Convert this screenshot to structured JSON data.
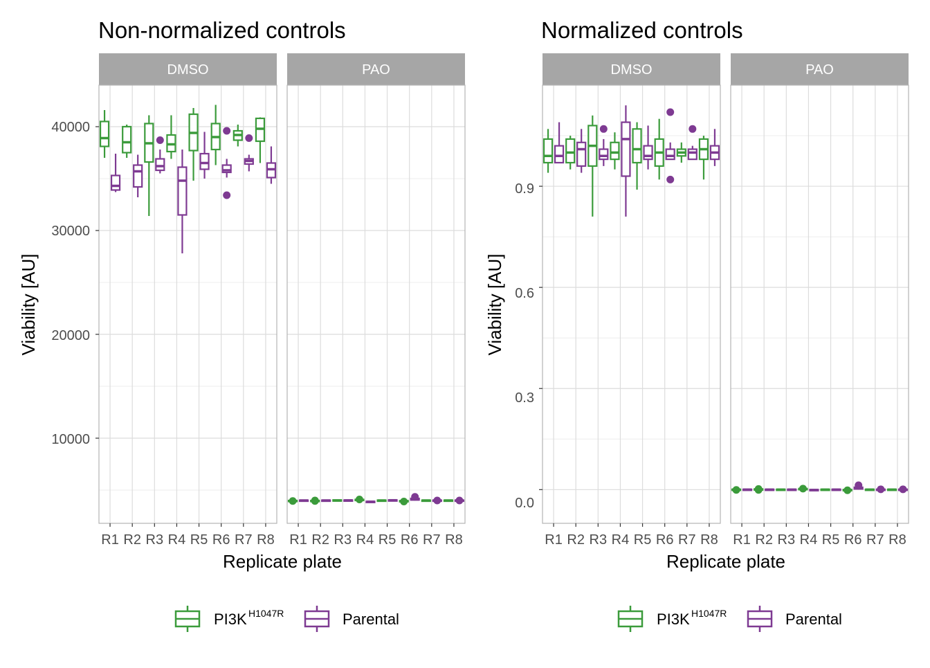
{
  "colors": {
    "pi3k": "#3b9b3b",
    "parental": "#7e3a92",
    "strip_bg": "#a6a6a6",
    "grid_major": "#dcdcdc",
    "grid_minor": "#ededed",
    "panel_border": "#b3b3b3"
  },
  "legend": {
    "pi3k_label": "PI3K",
    "pi3k_sup": "H1047R",
    "parental_label": "Parental"
  },
  "chart_data": [
    {
      "type": "box",
      "title": "Non-normalized controls",
      "xlabel": "Replicate plate",
      "ylabel": "Viability [AU]",
      "ylim": [
        1800,
        44000
      ],
      "yticks": [
        10000,
        20000,
        30000,
        40000
      ],
      "ytick_labels": [
        "10000",
        "20000",
        "30000",
        "40000"
      ],
      "facets": [
        "DMSO",
        "PAO"
      ],
      "categories": [
        "R1",
        "R2",
        "R3",
        "R4",
        "R5",
        "R6",
        "R7",
        "R8"
      ],
      "series": [
        {
          "name": "PI3K H1047R",
          "facet": "DMSO",
          "boxes": [
            {
              "min": 37000,
              "q1": 38100,
              "med": 38900,
              "q3": 40500,
              "max": 41600,
              "out": []
            },
            {
              "min": 37000,
              "q1": 37500,
              "med": 38500,
              "q3": 40000,
              "max": 40200,
              "out": []
            },
            {
              "min": 31400,
              "q1": 36600,
              "med": 38400,
              "q3": 40300,
              "max": 41100,
              "out": []
            },
            {
              "min": 36900,
              "q1": 37600,
              "med": 38300,
              "q3": 39200,
              "max": 41100,
              "out": []
            },
            {
              "min": 34800,
              "q1": 37700,
              "med": 39400,
              "q3": 41200,
              "max": 41800,
              "out": []
            },
            {
              "min": 36300,
              "q1": 37800,
              "med": 39000,
              "q3": 40300,
              "max": 42100,
              "out": []
            },
            {
              "min": 38100,
              "q1": 38700,
              "med": 39200,
              "q3": 39600,
              "max": 40200,
              "out": []
            },
            {
              "min": 36500,
              "q1": 38600,
              "med": 39800,
              "q3": 40800,
              "max": 40900,
              "out": []
            }
          ]
        },
        {
          "name": "Parental",
          "facet": "DMSO",
          "boxes": [
            {
              "min": 33700,
              "q1": 33900,
              "med": 34300,
              "q3": 35300,
              "max": 37400,
              "out": []
            },
            {
              "min": 33200,
              "q1": 34200,
              "med": 35700,
              "q3": 36300,
              "max": 37300,
              "out": []
            },
            {
              "min": 35500,
              "q1": 35800,
              "med": 36200,
              "q3": 36900,
              "max": 37800,
              "out": [
                38700
              ]
            },
            {
              "min": 27800,
              "q1": 31500,
              "med": 34800,
              "q3": 36100,
              "max": 37800,
              "out": []
            },
            {
              "min": 35000,
              "q1": 35900,
              "med": 36500,
              "q3": 37400,
              "max": 39500,
              "out": []
            },
            {
              "min": 35100,
              "q1": 35600,
              "med": 35800,
              "q3": 36300,
              "max": 36900,
              "out": [
                33400,
                39600
              ]
            },
            {
              "min": 35700,
              "q1": 36400,
              "med": 36700,
              "q3": 36900,
              "max": 37300,
              "out": [
                38900
              ]
            },
            {
              "min": 34500,
              "q1": 35100,
              "med": 35900,
              "q3": 36500,
              "max": 38100,
              "out": []
            }
          ]
        },
        {
          "name": "PI3K H1047R",
          "facet": "PAO",
          "boxes": [
            {
              "min": 3850,
              "q1": 3900,
              "med": 3950,
              "q3": 4000,
              "max": 4050,
              "out": [
                3950
              ]
            },
            {
              "min": 3850,
              "q1": 3900,
              "med": 3950,
              "q3": 4000,
              "max": 4100,
              "out": [
                4000,
                3950
              ]
            },
            {
              "min": 3950,
              "q1": 3990,
              "med": 4000,
              "q3": 4050,
              "max": 4080,
              "out": []
            },
            {
              "min": 3950,
              "q1": 4000,
              "med": 4050,
              "q3": 4100,
              "max": 4150,
              "out": [
                4100
              ]
            },
            {
              "min": 3950,
              "q1": 3980,
              "med": 4000,
              "q3": 4030,
              "max": 4060,
              "out": []
            },
            {
              "min": 3850,
              "q1": 3900,
              "med": 3930,
              "q3": 3980,
              "max": 4020,
              "out": [
                3900
              ]
            },
            {
              "min": 3950,
              "q1": 3970,
              "med": 4000,
              "q3": 4030,
              "max": 4060,
              "out": []
            },
            {
              "min": 3950,
              "q1": 3970,
              "med": 4000,
              "q3": 4030,
              "max": 4060,
              "out": []
            }
          ]
        },
        {
          "name": "Parental",
          "facet": "PAO",
          "boxes": [
            {
              "min": 3950,
              "q1": 3980,
              "med": 4000,
              "q3": 4030,
              "max": 4060,
              "out": []
            },
            {
              "min": 3950,
              "q1": 3980,
              "med": 4000,
              "q3": 4030,
              "max": 4060,
              "out": []
            },
            {
              "min": 3950,
              "q1": 3980,
              "med": 4010,
              "q3": 4040,
              "max": 4070,
              "out": []
            },
            {
              "min": 3800,
              "q1": 3850,
              "med": 3880,
              "q3": 3910,
              "max": 3950,
              "out": []
            },
            {
              "min": 3950,
              "q1": 3990,
              "med": 4020,
              "q3": 4050,
              "max": 4080,
              "out": []
            },
            {
              "min": 4000,
              "q1": 4050,
              "med": 4100,
              "q3": 4200,
              "max": 4300,
              "out": [
                4350
              ]
            },
            {
              "min": 3950,
              "q1": 3980,
              "med": 4000,
              "q3": 4030,
              "max": 4060,
              "out": [
                4000
              ]
            },
            {
              "min": 3950,
              "q1": 3980,
              "med": 4000,
              "q3": 4030,
              "max": 4060,
              "out": [
                4000
              ]
            }
          ]
        }
      ]
    },
    {
      "type": "box",
      "title": "Normalized controls",
      "xlabel": "Replicate plate",
      "ylabel": "Viability [AU]",
      "ylim": [
        -0.1,
        1.2
      ],
      "yticks": [
        0.0,
        0.3,
        0.6,
        0.9
      ],
      "ytick_labels": [
        "0.0",
        "0.3",
        "0.6",
        "0.9"
      ],
      "facets": [
        "DMSO",
        "PAO"
      ],
      "categories": [
        "R1",
        "R2",
        "R3",
        "R4",
        "R5",
        "R6",
        "R7",
        "R8"
      ],
      "series": [
        {
          "name": "PI3K H1047R",
          "facet": "DMSO",
          "boxes": [
            {
              "min": 0.94,
              "q1": 0.97,
              "med": 0.99,
              "q3": 1.04,
              "max": 1.07,
              "out": []
            },
            {
              "min": 0.95,
              "q1": 0.97,
              "med": 1.0,
              "q3": 1.04,
              "max": 1.05,
              "out": []
            },
            {
              "min": 0.81,
              "q1": 0.96,
              "med": 1.02,
              "q3": 1.08,
              "max": 1.11,
              "out": []
            },
            {
              "min": 0.95,
              "q1": 0.98,
              "med": 1.0,
              "q3": 1.03,
              "max": 1.06,
              "out": []
            },
            {
              "min": 0.89,
              "q1": 0.97,
              "med": 1.01,
              "q3": 1.07,
              "max": 1.09,
              "out": []
            },
            {
              "min": 0.92,
              "q1": 0.96,
              "med": 1.0,
              "q3": 1.04,
              "max": 1.1,
              "out": []
            },
            {
              "min": 0.97,
              "q1": 0.99,
              "med": 1.0,
              "q3": 1.01,
              "max": 1.03,
              "out": []
            },
            {
              "min": 0.92,
              "q1": 0.98,
              "med": 1.01,
              "q3": 1.04,
              "max": 1.05,
              "out": []
            }
          ]
        },
        {
          "name": "Parental",
          "facet": "DMSO",
          "boxes": [
            {
              "min": 0.97,
              "q1": 0.97,
              "med": 0.99,
              "q3": 1.02,
              "max": 1.09,
              "out": []
            },
            {
              "min": 0.94,
              "q1": 0.96,
              "med": 1.01,
              "q3": 1.03,
              "max": 1.07,
              "out": []
            },
            {
              "min": 0.96,
              "q1": 0.98,
              "med": 0.99,
              "q3": 1.01,
              "max": 1.04,
              "out": [
                1.07
              ]
            },
            {
              "min": 0.81,
              "q1": 0.93,
              "med": 1.04,
              "q3": 1.09,
              "max": 1.14,
              "out": []
            },
            {
              "min": 0.95,
              "q1": 0.98,
              "med": 0.99,
              "q3": 1.02,
              "max": 1.08,
              "out": []
            },
            {
              "min": 0.98,
              "q1": 0.98,
              "med": 0.99,
              "q3": 1.01,
              "max": 1.03,
              "out": [
                0.92,
                1.12
              ]
            },
            {
              "min": 0.98,
              "q1": 0.98,
              "med": 1.0,
              "q3": 1.01,
              "max": 1.02,
              "out": [
                1.07
              ]
            },
            {
              "min": 0.96,
              "q1": 0.98,
              "med": 1.0,
              "q3": 1.02,
              "max": 1.07,
              "out": []
            }
          ]
        },
        {
          "name": "PI3K H1047R",
          "facet": "PAO",
          "boxes": [
            {
              "min": -0.003,
              "q1": -0.001,
              "med": 0.0,
              "q3": 0.001,
              "max": 0.003,
              "out": [
                -0.001
              ]
            },
            {
              "min": -0.004,
              "q1": -0.001,
              "med": 0.0,
              "q3": 0.002,
              "max": 0.004,
              "out": [
                0.002,
                -0.001
              ]
            },
            {
              "min": -0.002,
              "q1": -0.001,
              "med": 0.0,
              "q3": 0.001,
              "max": 0.002,
              "out": []
            },
            {
              "min": 0.0,
              "q1": 0.001,
              "med": 0.002,
              "q3": 0.003,
              "max": 0.005,
              "out": [
                0.003
              ]
            },
            {
              "min": -0.002,
              "q1": -0.001,
              "med": 0.0,
              "q3": 0.001,
              "max": 0.002,
              "out": []
            },
            {
              "min": -0.004,
              "q1": -0.002,
              "med": -0.001,
              "q3": 0.0,
              "max": 0.001,
              "out": [
                -0.002
              ]
            },
            {
              "min": -0.002,
              "q1": -0.001,
              "med": 0.0,
              "q3": 0.001,
              "max": 0.002,
              "out": []
            },
            {
              "min": -0.002,
              "q1": -0.001,
              "med": 0.0,
              "q3": 0.001,
              "max": 0.002,
              "out": []
            }
          ]
        },
        {
          "name": "Parental",
          "facet": "PAO",
          "boxes": [
            {
              "min": -0.002,
              "q1": -0.001,
              "med": 0.0,
              "q3": 0.001,
              "max": 0.002,
              "out": []
            },
            {
              "min": -0.002,
              "q1": -0.001,
              "med": 0.0,
              "q3": 0.001,
              "max": 0.002,
              "out": []
            },
            {
              "min": -0.002,
              "q1": -0.001,
              "med": 0.0,
              "q3": 0.001,
              "max": 0.002,
              "out": []
            },
            {
              "min": -0.004,
              "q1": -0.002,
              "med": -0.001,
              "q3": 0.0,
              "max": 0.001,
              "out": []
            },
            {
              "min": -0.002,
              "q1": -0.001,
              "med": 0.0,
              "q3": 0.001,
              "max": 0.002,
              "out": []
            },
            {
              "min": 0.0,
              "q1": 0.002,
              "med": 0.004,
              "q3": 0.007,
              "max": 0.01,
              "out": [
                0.013
              ]
            },
            {
              "min": -0.002,
              "q1": -0.001,
              "med": 0.0,
              "q3": 0.001,
              "max": 0.002,
              "out": [
                0.001
              ]
            },
            {
              "min": -0.002,
              "q1": -0.001,
              "med": 0.0,
              "q3": 0.001,
              "max": 0.002,
              "out": [
                0.001
              ]
            }
          ]
        }
      ]
    }
  ]
}
